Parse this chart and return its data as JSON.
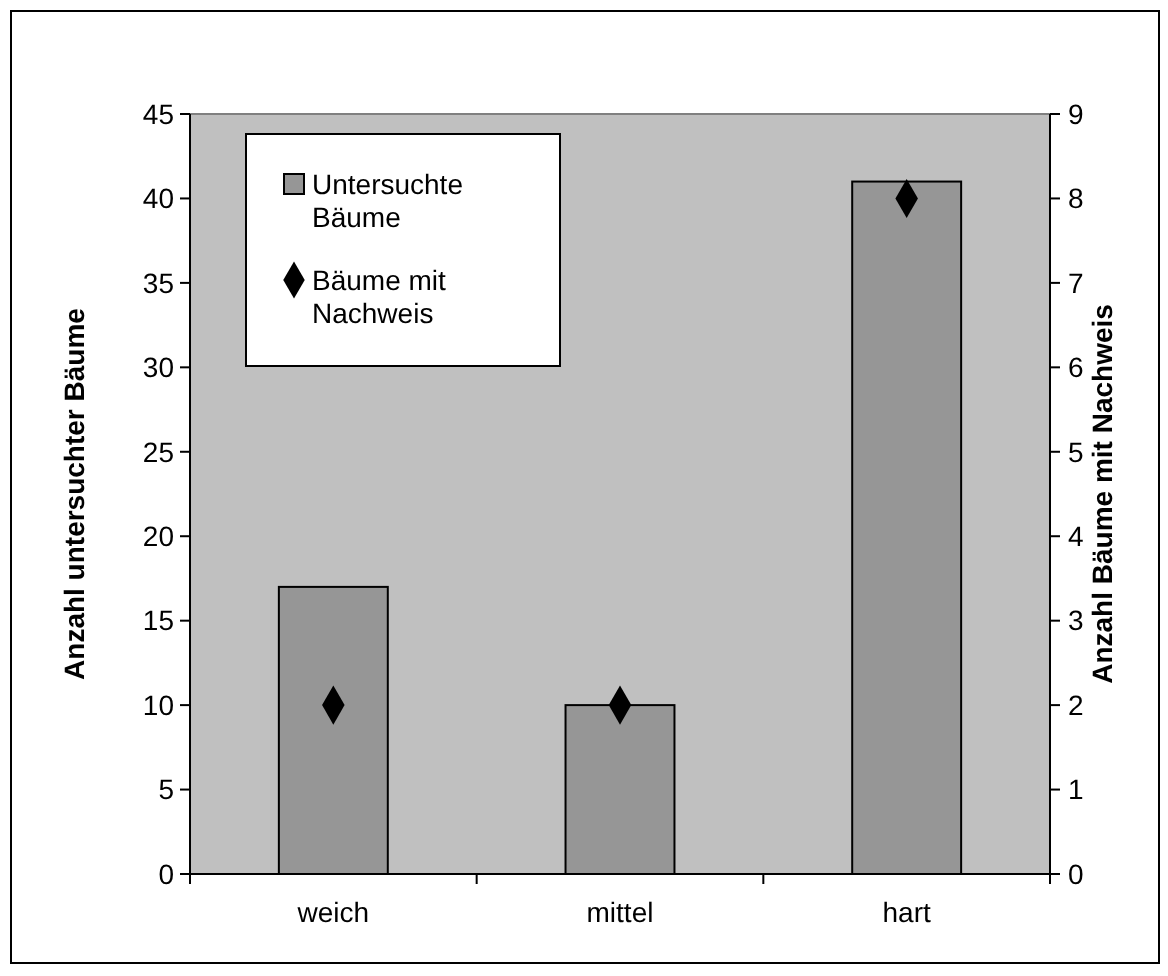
{
  "chart_data": {
    "type": "bar",
    "categories": [
      "weich",
      "mittel",
      "hart"
    ],
    "series": [
      {
        "name": "Untersuchte Bäume",
        "color": "#969696",
        "values": [
          17,
          10,
          41
        ]
      },
      {
        "name": "Bäume mit Nachweis",
        "type": "scatter",
        "axis": "y2",
        "color": "#000000",
        "x": [
          "weich",
          "mittel",
          "hart"
        ],
        "values": [
          2,
          2,
          8
        ]
      }
    ],
    "ylabel": "Anzahl untersuchter Bäume",
    "y2label": "Anzahl Bäume mit Nachweis",
    "ylim": [
      0,
      45
    ],
    "yticks": [
      0,
      5,
      10,
      15,
      20,
      25,
      30,
      35,
      40,
      45
    ],
    "y2lim": [
      0,
      9
    ],
    "y2ticks": [
      0,
      1,
      2,
      3,
      4,
      5,
      6,
      7,
      8,
      9
    ],
    "legend": "top left",
    "marker": "diamond",
    "grid": false
  }
}
